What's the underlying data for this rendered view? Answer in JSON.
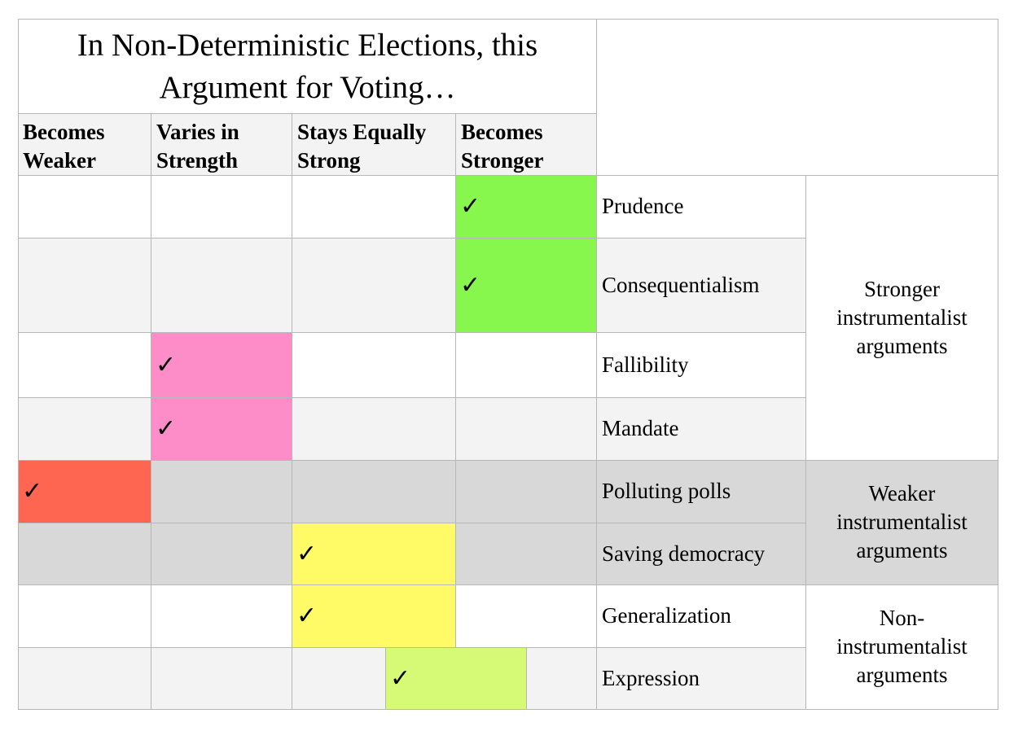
{
  "title": "In Non-Deterministic Elections, this Argument for Voting…",
  "columns": [
    {
      "label": "Becomes Weaker"
    },
    {
      "label": "Varies in Strength"
    },
    {
      "label": "Stays Equally Strong"
    },
    {
      "label": "Becomes Stronger"
    }
  ],
  "rows": [
    {
      "label": "Prudence"
    },
    {
      "label": "Consequentialism"
    },
    {
      "label": "Fallibility"
    },
    {
      "label": "Mandate"
    },
    {
      "label": "Polluting polls"
    },
    {
      "label": "Saving democracy"
    },
    {
      "label": "Generalization"
    },
    {
      "label": "Expression"
    }
  ],
  "groups": [
    {
      "label": "Stronger instrumentalist arguments"
    },
    {
      "label": "Weaker instrumentalist arguments"
    },
    {
      "label": "Non-instrumentalist arguments"
    }
  ],
  "check_glyph": "✓",
  "colors": {
    "green": "#88f74d",
    "pink": "#fd8dc8",
    "red": "#ff6651",
    "yellow": "#fffb66",
    "light_green": "#d7fa76",
    "row_alt": "#f3f3f3",
    "row_dark": "#d8d8d8"
  }
}
